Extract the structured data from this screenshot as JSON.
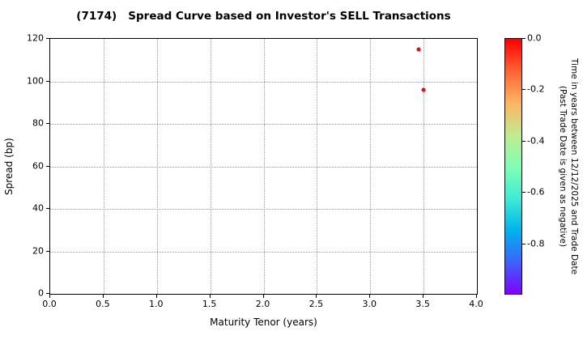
{
  "chart_data": {
    "type": "scatter",
    "title": "(7174)   Spread Curve based on Investor's SELL Transactions",
    "xlabel": "Maturity Tenor (years)",
    "ylabel": "Spread (bp)",
    "xlim": [
      0.0,
      4.0
    ],
    "ylim": [
      0,
      120
    ],
    "grid": true,
    "grid_style": "dotted",
    "xticks": [
      {
        "v": 0.0,
        "label": "0.0"
      },
      {
        "v": 0.5,
        "label": "0.5"
      },
      {
        "v": 1.0,
        "label": "1.0"
      },
      {
        "v": 1.5,
        "label": "1.5"
      },
      {
        "v": 2.0,
        "label": "2.0"
      },
      {
        "v": 2.5,
        "label": "2.5"
      },
      {
        "v": 3.0,
        "label": "3.0"
      },
      {
        "v": 3.5,
        "label": "3.5"
      },
      {
        "v": 4.0,
        "label": "4.0"
      }
    ],
    "yticks": [
      {
        "v": 0,
        "label": "0"
      },
      {
        "v": 20,
        "label": "20"
      },
      {
        "v": 40,
        "label": "40"
      },
      {
        "v": 60,
        "label": "60"
      },
      {
        "v": 80,
        "label": "80"
      },
      {
        "v": 100,
        "label": "100"
      },
      {
        "v": 120,
        "label": "120"
      }
    ],
    "points": [
      {
        "x": 3.45,
        "y": 115,
        "color": "#ff0000"
      },
      {
        "x": 3.5,
        "y": 96,
        "color": "#ff0000"
      }
    ],
    "colorbar": {
      "label_line1": "Time in years between 12/12/2025 and Trade Date",
      "label_line2": "(Past Trade Date is given as negative)",
      "min": -1.0,
      "max": 0.0,
      "ticks": [
        {
          "v": 0.0,
          "label": "0.0"
        },
        {
          "v": -0.2,
          "label": "-0.2"
        },
        {
          "v": -0.4,
          "label": "-0.4"
        },
        {
          "v": -0.6,
          "label": "-0.6"
        },
        {
          "v": -0.8,
          "label": "-0.8"
        }
      ],
      "gradient": [
        {
          "pos": 0.0,
          "color": "#8000ff"
        },
        {
          "pos": 0.125,
          "color": "#4062fa"
        },
        {
          "pos": 0.25,
          "color": "#00b4ec"
        },
        {
          "pos": 0.375,
          "color": "#40ecd4"
        },
        {
          "pos": 0.5,
          "color": "#80ffb4"
        },
        {
          "pos": 0.625,
          "color": "#bfec8e"
        },
        {
          "pos": 0.75,
          "color": "#ffb462"
        },
        {
          "pos": 0.875,
          "color": "#ff6232"
        },
        {
          "pos": 1.0,
          "color": "#ff0000"
        }
      ]
    }
  }
}
